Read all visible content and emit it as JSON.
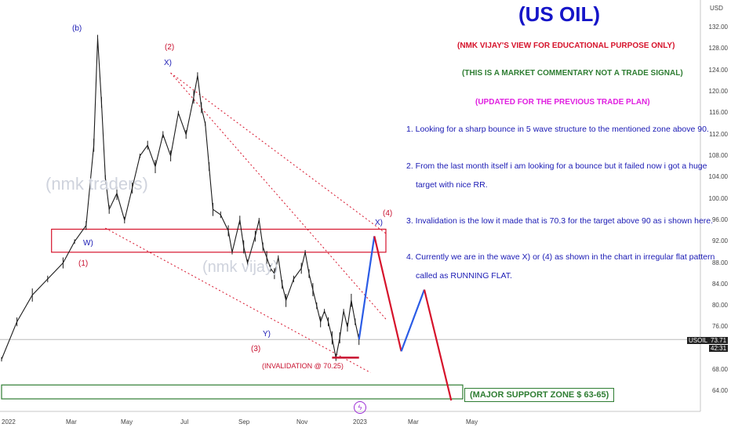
{
  "chart_data": {
    "type": "line",
    "symbol": "USOIL",
    "currency": "USD",
    "title": "(US OIL)",
    "y_ticks": [
      "132.00",
      "128.00",
      "124.00",
      "120.00",
      "116.00",
      "112.00",
      "108.00",
      "104.00",
      "100.00",
      "96.00",
      "92.00",
      "88.00",
      "84.00",
      "80.00",
      "76.00",
      "68.00",
      "64.00"
    ],
    "x_ticks": [
      "2022",
      "Mar",
      "May",
      "Jul",
      "Sep",
      "Nov",
      "2023",
      "Mar",
      "May"
    ],
    "last_price": "73.71",
    "countdown": "42:31",
    "ylim": [
      62,
      136
    ],
    "grid": false,
    "price_path": [
      {
        "t": 0,
        "p": 70
      },
      {
        "t": 4,
        "p": 77
      },
      {
        "t": 8,
        "p": 82
      },
      {
        "t": 12,
        "p": 85
      },
      {
        "t": 16,
        "p": 88
      },
      {
        "t": 19,
        "p": 92
      },
      {
        "t": 22,
        "p": 95
      },
      {
        "t": 24,
        "p": 110
      },
      {
        "t": 25,
        "p": 130
      },
      {
        "t": 26,
        "p": 118
      },
      {
        "t": 27,
        "p": 104
      },
      {
        "t": 28,
        "p": 98
      },
      {
        "t": 30,
        "p": 101
      },
      {
        "t": 32,
        "p": 96
      },
      {
        "t": 34,
        "p": 102
      },
      {
        "t": 36,
        "p": 108
      },
      {
        "t": 38,
        "p": 110
      },
      {
        "t": 40,
        "p": 106
      },
      {
        "t": 42,
        "p": 112
      },
      {
        "t": 44,
        "p": 108
      },
      {
        "t": 46,
        "p": 116
      },
      {
        "t": 48,
        "p": 112
      },
      {
        "t": 50,
        "p": 119
      },
      {
        "t": 51,
        "p": 123
      },
      {
        "t": 52,
        "p": 117
      },
      {
        "t": 53,
        "p": 114
      },
      {
        "t": 54,
        "p": 106
      },
      {
        "t": 55,
        "p": 98
      },
      {
        "t": 57,
        "p": 97
      },
      {
        "t": 59,
        "p": 94
      },
      {
        "t": 60,
        "p": 90
      },
      {
        "t": 62,
        "p": 96
      },
      {
        "t": 63,
        "p": 91
      },
      {
        "t": 64,
        "p": 88
      },
      {
        "t": 66,
        "p": 93
      },
      {
        "t": 67,
        "p": 96
      },
      {
        "t": 68,
        "p": 91
      },
      {
        "t": 69,
        "p": 89
      },
      {
        "t": 70,
        "p": 87
      },
      {
        "t": 71,
        "p": 86
      },
      {
        "t": 72,
        "p": 89
      },
      {
        "t": 73,
        "p": 84
      },
      {
        "t": 74,
        "p": 81
      },
      {
        "t": 76,
        "p": 85
      },
      {
        "t": 78,
        "p": 87
      },
      {
        "t": 79,
        "p": 90
      },
      {
        "t": 80,
        "p": 86
      },
      {
        "t": 81,
        "p": 83
      },
      {
        "t": 82,
        "p": 80
      },
      {
        "t": 83,
        "p": 77
      },
      {
        "t": 84,
        "p": 79
      },
      {
        "t": 85,
        "p": 77
      },
      {
        "t": 86,
        "p": 74
      },
      {
        "t": 87,
        "p": 70.3
      },
      {
        "t": 88,
        "p": 74
      },
      {
        "t": 89,
        "p": 79
      },
      {
        "t": 90,
        "p": 76
      },
      {
        "t": 91,
        "p": 81
      },
      {
        "t": 92,
        "p": 77
      },
      {
        "t": 93,
        "p": 73.7
      }
    ],
    "projection": [
      {
        "t": 93,
        "p": 73.7,
        "color": "#2b5ce6"
      },
      {
        "t": 97,
        "p": 93,
        "color": "#2b5ce6"
      },
      {
        "t": 104,
        "p": 71.5,
        "color": "#d6132b"
      },
      {
        "t": 110,
        "p": 83,
        "color": "#2b5ce6"
      },
      {
        "t": 117,
        "p": 62.3,
        "color": "#d6132b"
      }
    ],
    "zones": [
      {
        "name": "resistance",
        "top": 94.3,
        "bottom": 90,
        "t_start": 13,
        "t_end": 100,
        "color": "#d6132b"
      },
      {
        "name": "support",
        "top": 65.2,
        "bottom": 62.6,
        "t_start": 0,
        "t_end": 120,
        "color": "#2e7d32"
      }
    ],
    "trendlines": [
      {
        "t1": 44,
        "p1": 123.5,
        "t2": 100,
        "p2": 77.5,
        "color": "#d6132b",
        "dashed": true
      },
      {
        "t1": 27,
        "p1": 94.5,
        "t2": 96,
        "p2": 67.5,
        "color": "#d6132b",
        "dashed": true
      },
      {
        "t1": 44,
        "p1": 123.5,
        "t2": 100,
        "p2": 93.5,
        "color": "#d6132b",
        "dashed": true
      }
    ],
    "annotations": {
      "b": "(b)",
      "two": "(2)",
      "x_upper": "X)",
      "w": "W)",
      "one": "(1)",
      "y": "Y)",
      "three": "(3)",
      "four": "(4)",
      "x_lower": "X)",
      "invalidation": "(INVALIDATION @ 70.25)",
      "support_label": "(MAJOR SUPPORT ZONE $ 63-65)"
    },
    "watermarks": [
      "(nmk traders)",
      "(nmk vijay)"
    ]
  },
  "commentary": {
    "view": "(NMK VIJAY'S VIEW FOR EDUCATIONAL PURPOSE ONLY)",
    "disclaimer": "(THIS IS A MARKET COMMENTARY NOT A TRADE SIGNAL)",
    "updated": "(UPDATED FOR THE PREVIOUS TRADE PLAN)",
    "points": [
      "1. Looking for a sharp bounce in 5 wave structure to the mentioned zone above 90.",
      "2. From the last month itself i am looking for a bounce but it failed now i got a huge",
      "target with nice RR.",
      "3. Invalidation is the low it made that is 70.3 for the target above 90 as i shown here.",
      "4. Currently we are in the wave X) or (4) as shown in the chart in irregular flat pattern",
      "called as RUNNING FLAT."
    ]
  },
  "colors": {
    "title": "#1515c8",
    "view": "#d6132b",
    "disclaimer": "#2e7d32",
    "updated": "#e020e0",
    "notes": "#1a1ab4",
    "accent_blue": "#2b5ce6",
    "accent_red": "#d6132b"
  }
}
